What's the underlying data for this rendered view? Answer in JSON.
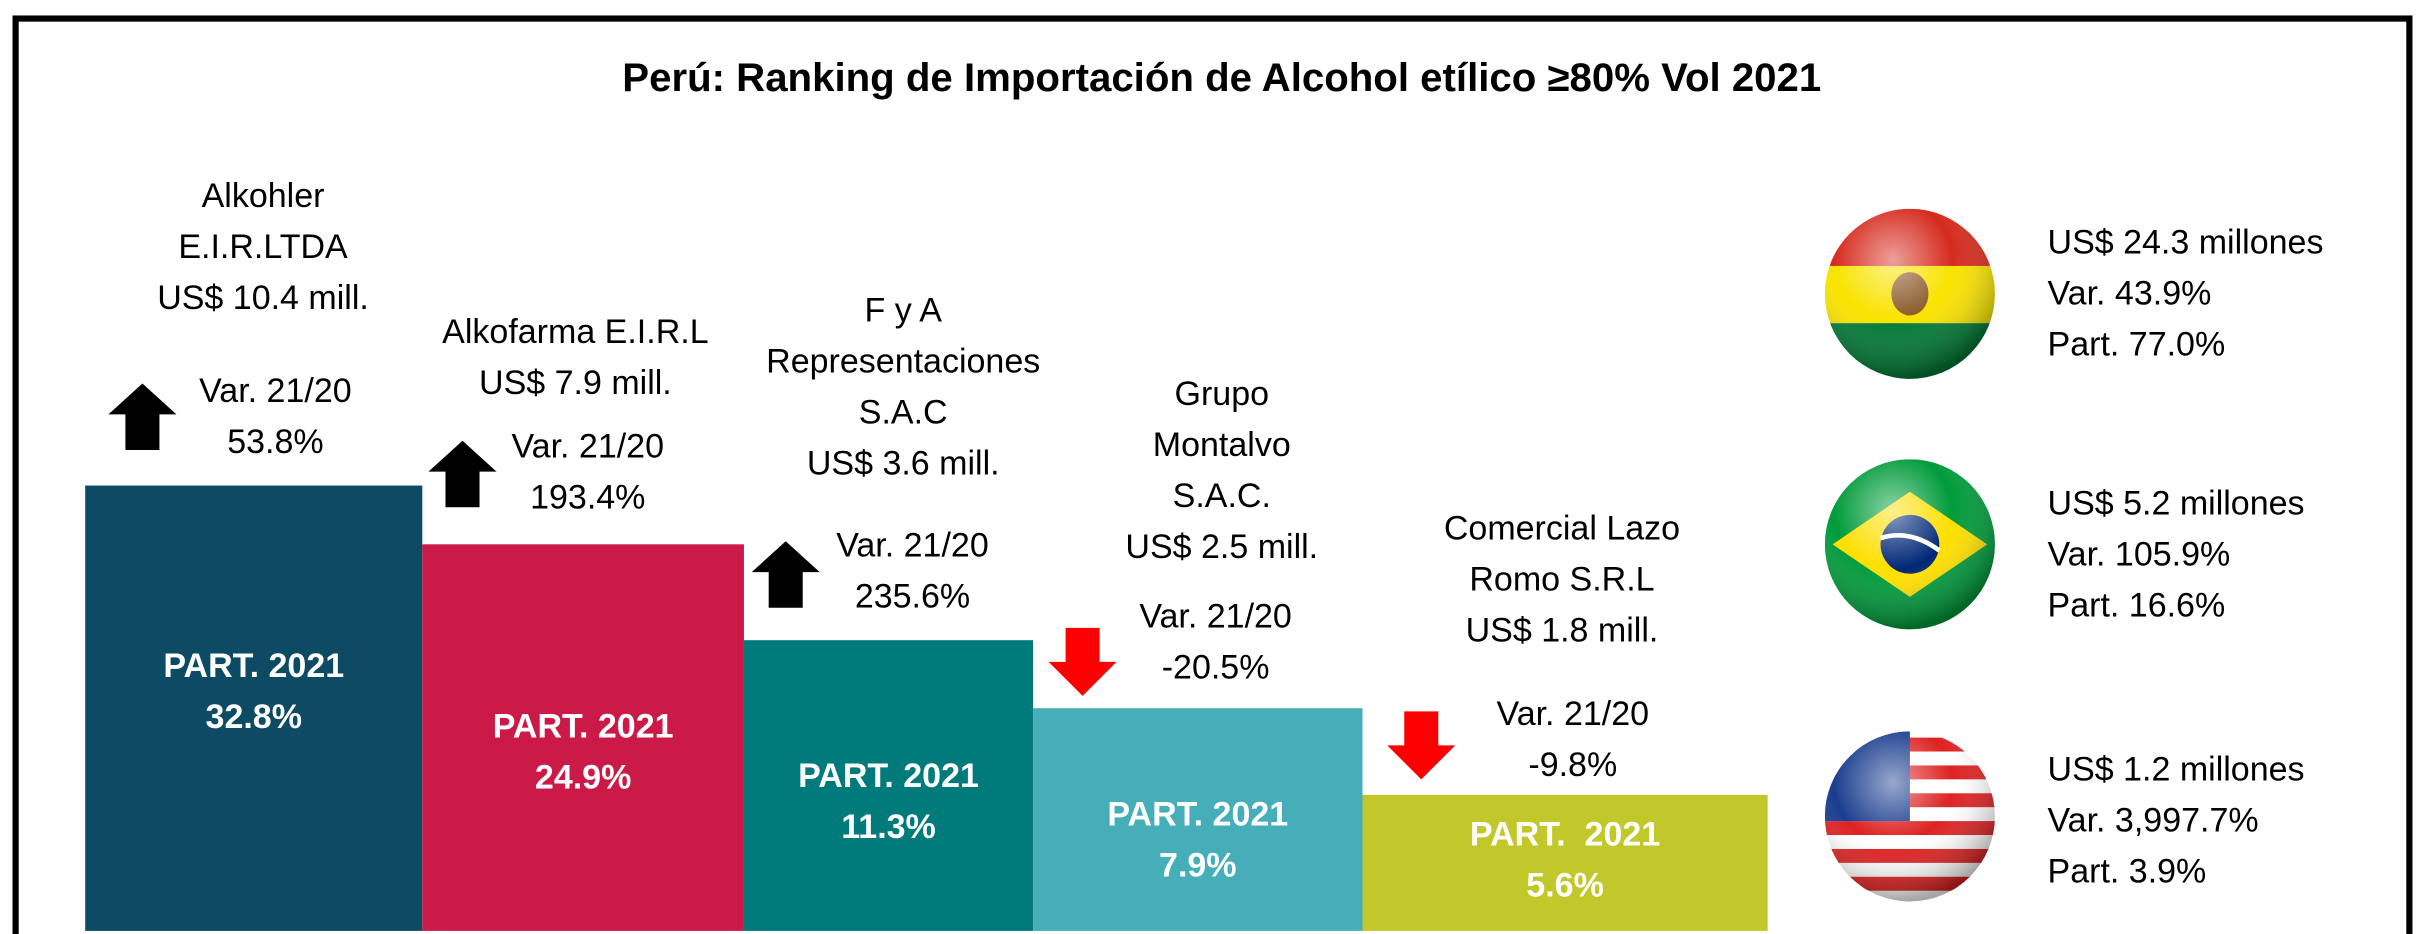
{
  "title": "Perú: Ranking de Importación de Alcohol etílico ≥80% Vol 2021",
  "companies": [
    {
      "name": [
        "Alkohler",
        "E.I.R.LTDA"
      ],
      "value": "US$ 10.4 mill.",
      "var_label": "Var. 21/20",
      "variation": "53.8%",
      "share_label": "PART. 2021",
      "share": "32.8%",
      "color": "#0d4a63",
      "trend": "up"
    },
    {
      "name": [
        "Alkofarma E.I.R.L"
      ],
      "value": "US$ 7.9 mill.",
      "var_label": "Var. 21/20",
      "variation": "193.4%",
      "share_label": "PART. 2021",
      "share": "24.9%",
      "color": "#cc1a48",
      "trend": "up"
    },
    {
      "name": [
        "F y A",
        "Representaciones",
        "S.A.C"
      ],
      "value": "US$ 3.6 mill.",
      "var_label": "Var. 21/20",
      "variation": "235.6%",
      "share_label": "PART. 2021",
      "share": "11.3%",
      "color": "#007a7a",
      "trend": "up"
    },
    {
      "name": [
        "Grupo",
        "Montalvo",
        "S.A.C."
      ],
      "value": "US$ 2.5 mill.",
      "var_label": "Var. 21/20",
      "variation": "-20.5%",
      "share_label": "PART. 2021",
      "share": "7.9%",
      "color": "#45aeb8",
      "trend": "down"
    },
    {
      "name": [
        "Comercial Lazo",
        "Romo S.R.L"
      ],
      "value": "US$ 1.8 mill.",
      "var_label": "Var. 21/20",
      "variation": "-9.8%",
      "share_label": "PART.  2021",
      "share": "5.6%",
      "color": "#c2c72a",
      "trend": "down"
    }
  ],
  "countries": [
    {
      "lines": [
        "US$ 24.3 millones",
        "Var. 43.9%",
        "Part. 77.0%"
      ]
    },
    {
      "lines": [
        "US$ 5.2 millones",
        "Var. 105.9%",
        "Part. 16.6%"
      ]
    },
    {
      "lines": [
        "US$ 1.2 millones",
        "Var. 3,997.7%",
        "Part. 3.9%"
      ]
    }
  ]
}
